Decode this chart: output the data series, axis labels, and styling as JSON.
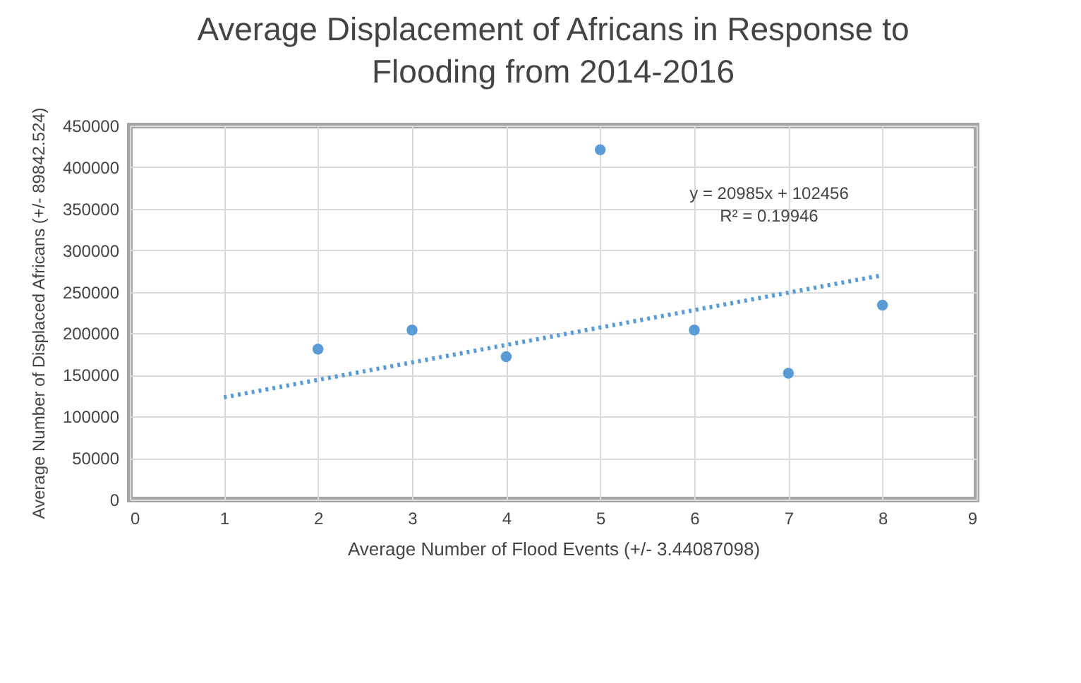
{
  "chart_data": {
    "type": "scatter",
    "title": "Average Displacement of Africans in Response to Flooding from 2014-2016",
    "xlabel": "Average Number of Flood Events (+/- 3.44087098)",
    "ylabel": "Average Number of Displaced Africans (+/- 89842.524)",
    "x": [
      2,
      3,
      4,
      5,
      6,
      7,
      8
    ],
    "series": [
      {
        "color": "#5b9bd5",
        "marker": "circle",
        "values": [
          181000,
          204000,
          172000,
          421000,
          204000,
          152000,
          234000
        ]
      },
      {
        "type": "line",
        "color": "#5b9bd5",
        "line_style": "dotted",
        "marker": "none",
        "x": [
          1,
          8
        ],
        "values": [
          123000,
          270000
        ]
      }
    ],
    "annotations": [
      "y = 20985x + 102456",
      "R² = 0.19946"
    ],
    "xlim": [
      0,
      9
    ],
    "xticks": [
      0,
      1,
      2,
      3,
      4,
      5,
      6,
      7,
      8,
      9
    ],
    "ylim": [
      0,
      450000
    ],
    "yticks": [
      0,
      50000,
      100000,
      150000,
      200000,
      250000,
      300000,
      350000,
      400000,
      450000
    ],
    "grid": true
  }
}
